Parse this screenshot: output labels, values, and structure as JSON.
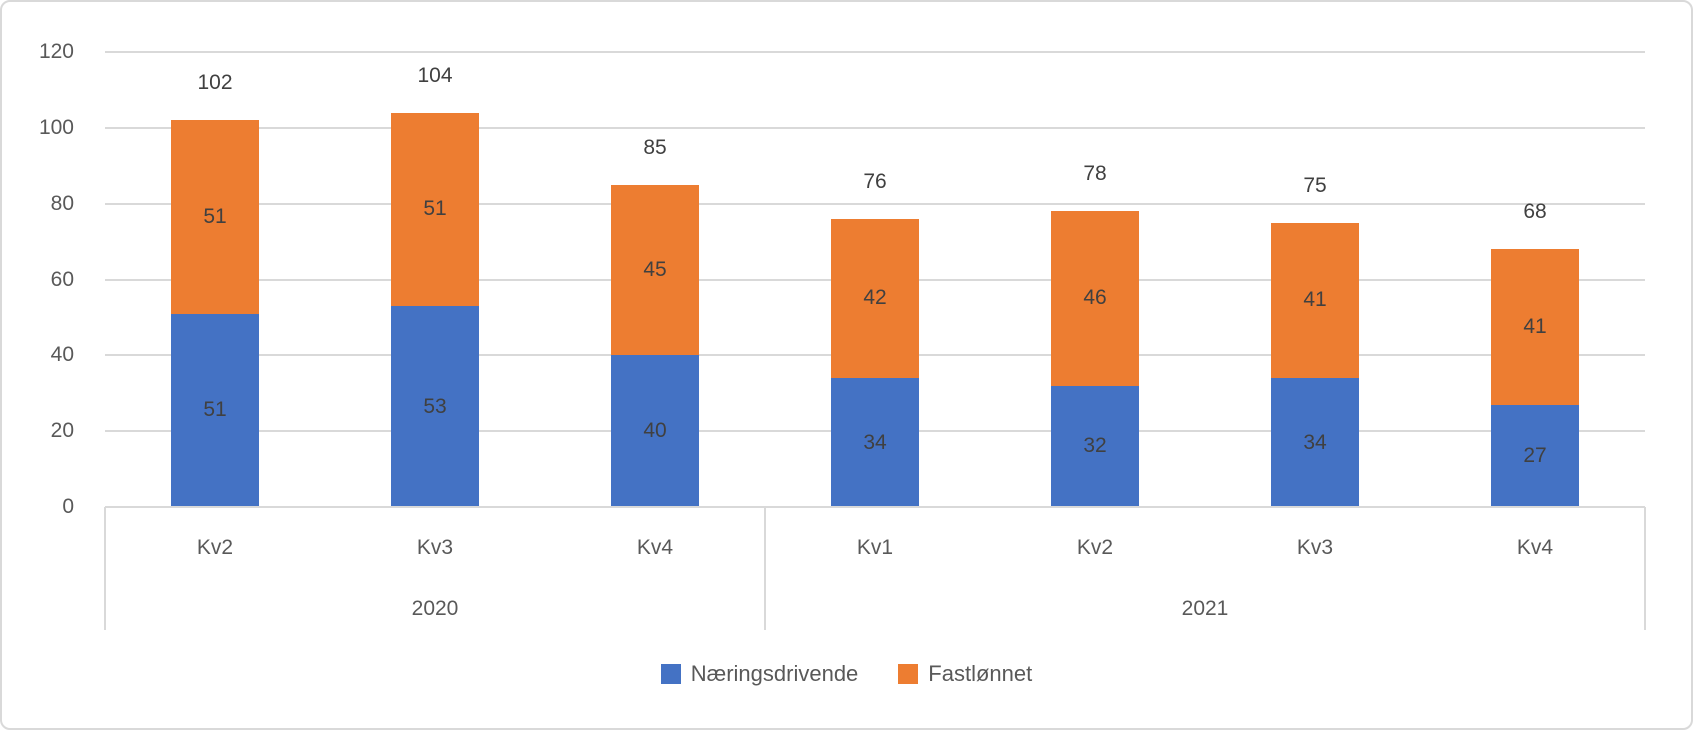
{
  "chart_data": {
    "type": "bar",
    "stacked": true,
    "orientation": "vertical",
    "title": "",
    "xlabel": "",
    "ylabel": "",
    "categories": [
      "Kv2",
      "Kv3",
      "Kv4",
      "Kv1",
      "Kv2",
      "Kv3",
      "Kv4"
    ],
    "x_groups": [
      {
        "label": "2020",
        "quarters": [
          "Kv2",
          "Kv3",
          "Kv4"
        ]
      },
      {
        "label": "2021",
        "quarters": [
          "Kv1",
          "Kv2",
          "Kv3",
          "Kv4"
        ]
      }
    ],
    "series": [
      {
        "name": "Næringsdrivende",
        "color": "#4472C4",
        "values": [
          51,
          53,
          40,
          34,
          32,
          34,
          27
        ]
      },
      {
        "name": "Fastlønnet",
        "color": "#ED7D31",
        "values": [
          51,
          51,
          45,
          42,
          46,
          41,
          41
        ]
      }
    ],
    "totals": [
      102,
      104,
      85,
      76,
      78,
      75,
      68
    ],
    "y_axis": {
      "min": 0,
      "max": 120,
      "step": 20,
      "ticks": [
        "0",
        "20",
        "40",
        "60",
        "80",
        "100",
        "120"
      ]
    },
    "grid": true,
    "data_labels": {
      "segments": true,
      "totals": true
    },
    "legend_position": "bottom",
    "legend_entries": [
      "Næringsdrivende",
      "Fastlønnet"
    ],
    "colors": {
      "series_1": "#4472C4",
      "series_2": "#ED7D31",
      "gridline": "#d9d9d9",
      "axis_text": "#595959",
      "data_label_text": "#404040",
      "frame_border": "#d9d9d9",
      "background": "#ffffff"
    }
  }
}
